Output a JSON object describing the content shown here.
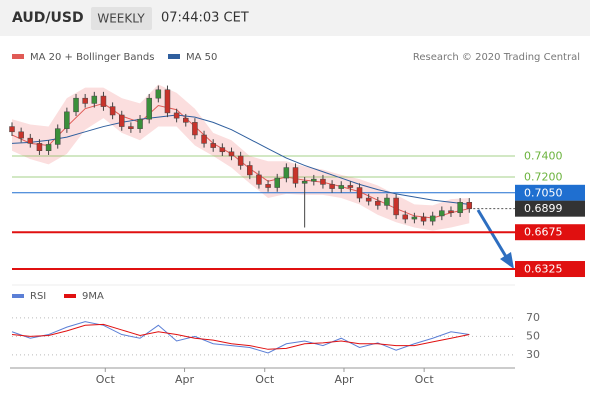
{
  "header": {
    "symbol": "AUD/USD",
    "period": "WEEKLY",
    "time": "07:44:03 CET"
  },
  "chart_data": [
    {
      "type": "candlestick",
      "note": "Research © 2020 Trading Central",
      "up_color": "#3a8f3a",
      "down_color": "#c8332b",
      "x": [
        0,
        3,
        6,
        9,
        12,
        15,
        18,
        21,
        24,
        27,
        30,
        33,
        36,
        39,
        42,
        45,
        48,
        51,
        54,
        57,
        60,
        63,
        66,
        69,
        72,
        75,
        78,
        81,
        84,
        87,
        90,
        93,
        96,
        99,
        102,
        105,
        108,
        111,
        114,
        117,
        120,
        123,
        126,
        129,
        132,
        135,
        138,
        141,
        144,
        147,
        150
      ],
      "open": [
        0.768,
        0.763,
        0.757,
        0.752,
        0.745,
        0.751,
        0.766,
        0.782,
        0.795,
        0.79,
        0.797,
        0.787,
        0.779,
        0.768,
        0.766,
        0.775,
        0.795,
        0.803,
        0.781,
        0.776,
        0.772,
        0.76,
        0.752,
        0.748,
        0.744,
        0.74,
        0.731,
        0.722,
        0.713,
        0.71,
        0.719,
        0.729,
        0.714,
        0.716,
        0.718,
        0.713,
        0.709,
        0.712,
        0.71,
        0.7,
        0.697,
        0.693,
        0.7,
        0.684,
        0.68,
        0.682,
        0.678,
        0.683,
        0.688,
        0.686,
        0.696
      ],
      "high": [
        0.772,
        0.767,
        0.761,
        0.756,
        0.755,
        0.77,
        0.786,
        0.799,
        0.799,
        0.801,
        0.801,
        0.791,
        0.783,
        0.772,
        0.779,
        0.799,
        0.807,
        0.807,
        0.785,
        0.78,
        0.776,
        0.764,
        0.756,
        0.752,
        0.748,
        0.744,
        0.735,
        0.726,
        0.717,
        0.723,
        0.733,
        0.733,
        0.72,
        0.722,
        0.722,
        0.717,
        0.716,
        0.716,
        0.714,
        0.704,
        0.701,
        0.704,
        0.704,
        0.688,
        0.686,
        0.686,
        0.687,
        0.692,
        0.692,
        0.7,
        0.7
      ],
      "low": [
        0.759,
        0.753,
        0.748,
        0.741,
        0.741,
        0.747,
        0.762,
        0.778,
        0.786,
        0.786,
        0.783,
        0.775,
        0.764,
        0.762,
        0.762,
        0.771,
        0.791,
        0.777,
        0.772,
        0.768,
        0.756,
        0.748,
        0.744,
        0.74,
        0.736,
        0.727,
        0.718,
        0.709,
        0.706,
        0.706,
        0.715,
        0.71,
        0.672,
        0.712,
        0.709,
        0.705,
        0.705,
        0.706,
        0.696,
        0.693,
        0.689,
        0.689,
        0.68,
        0.676,
        0.676,
        0.674,
        0.674,
        0.679,
        0.682,
        0.682,
        0.686
      ],
      "close": [
        0.763,
        0.757,
        0.752,
        0.745,
        0.751,
        0.766,
        0.782,
        0.795,
        0.79,
        0.797,
        0.787,
        0.779,
        0.768,
        0.766,
        0.775,
        0.795,
        0.803,
        0.781,
        0.776,
        0.772,
        0.76,
        0.752,
        0.748,
        0.744,
        0.74,
        0.731,
        0.722,
        0.713,
        0.71,
        0.719,
        0.729,
        0.714,
        0.716,
        0.718,
        0.713,
        0.709,
        0.712,
        0.71,
        0.7,
        0.697,
        0.693,
        0.7,
        0.684,
        0.68,
        0.682,
        0.678,
        0.683,
        0.688,
        0.686,
        0.696,
        0.6899
      ],
      "xlim": [
        0,
        165
      ],
      "ylim": [
        0.6173,
        0.8218
      ],
      "series": [
        {
          "name": "MA 20 + Bollinger Bands",
          "color": "#e05a55",
          "band_color": "#fbdede",
          "x": [
            0,
            6,
            12,
            18,
            24,
            30,
            36,
            42,
            48,
            54,
            60,
            66,
            72,
            78,
            84,
            90,
            96,
            102,
            108,
            114,
            120,
            126,
            132,
            138,
            144,
            150
          ],
          "values": [
            0.76,
            0.752,
            0.75,
            0.768,
            0.785,
            0.79,
            0.778,
            0.772,
            0.788,
            0.784,
            0.768,
            0.752,
            0.742,
            0.728,
            0.716,
            0.72,
            0.717,
            0.715,
            0.711,
            0.706,
            0.698,
            0.69,
            0.683,
            0.681,
            0.686,
            0.69
          ],
          "upper": [
            0.775,
            0.77,
            0.768,
            0.795,
            0.805,
            0.805,
            0.795,
            0.79,
            0.808,
            0.8,
            0.785,
            0.762,
            0.755,
            0.74,
            0.735,
            0.735,
            0.73,
            0.727,
            0.722,
            0.718,
            0.712,
            0.703,
            0.694,
            0.693,
            0.699,
            0.7
          ],
          "lower": [
            0.745,
            0.737,
            0.732,
            0.742,
            0.765,
            0.776,
            0.762,
            0.755,
            0.768,
            0.768,
            0.75,
            0.74,
            0.729,
            0.714,
            0.7,
            0.704,
            0.703,
            0.703,
            0.7,
            0.694,
            0.684,
            0.677,
            0.672,
            0.669,
            0.672,
            0.676
          ]
        },
        {
          "name": "MA 50",
          "color": "#2f5f9e",
          "x": [
            0,
            6,
            12,
            18,
            24,
            30,
            36,
            42,
            48,
            54,
            60,
            66,
            72,
            78,
            84,
            90,
            96,
            102,
            108,
            114,
            120,
            126,
            132,
            138,
            144,
            150
          ],
          "values": [
            0.752,
            0.753,
            0.755,
            0.758,
            0.763,
            0.768,
            0.772,
            0.775,
            0.777,
            0.779,
            0.777,
            0.772,
            0.765,
            0.756,
            0.747,
            0.738,
            0.731,
            0.725,
            0.719,
            0.713,
            0.708,
            0.704,
            0.701,
            0.698,
            0.696,
            0.694
          ]
        }
      ],
      "levels": [
        {
          "value": 0.74,
          "label": "0.7400",
          "color": "#6cb33e",
          "style": "text"
        },
        {
          "value": 0.72,
          "label": "0.7200",
          "color": "#6cb33e",
          "style": "text"
        },
        {
          "value": 0.705,
          "label": "0.7050",
          "color": "#1f6fd0",
          "style": "box"
        },
        {
          "value": 0.6899,
          "label": "0.6899",
          "color": "#333333",
          "style": "current"
        },
        {
          "value": 0.6675,
          "label": "0.6675",
          "color": "#e01010",
          "style": "box"
        },
        {
          "value": 0.6325,
          "label": "0.6325",
          "color": "#e01010",
          "style": "box"
        }
      ]
    },
    {
      "type": "line",
      "xlim": [
        0,
        165
      ],
      "ylim": [
        19,
        84
      ],
      "yticks": [
        30,
        50,
        70
      ],
      "grid": true,
      "xticks": [
        {
          "value": 30.6,
          "label": "Oct"
        },
        {
          "value": 56.6,
          "label": "Apr"
        },
        {
          "value": 82.9,
          "label": "Oct"
        },
        {
          "value": 108.9,
          "label": "Apr"
        },
        {
          "value": 135.2,
          "label": "Oct"
        }
      ],
      "series": [
        {
          "name": "RSI",
          "color": "#5b7fd6",
          "x": [
            0,
            6,
            12,
            18,
            24,
            30,
            36,
            42,
            48,
            54,
            60,
            66,
            72,
            78,
            84,
            90,
            96,
            102,
            108,
            114,
            120,
            126,
            132,
            138,
            144,
            150
          ],
          "values": [
            55,
            48,
            52,
            60,
            66,
            62,
            52,
            48,
            62,
            45,
            50,
            42,
            40,
            38,
            32,
            42,
            45,
            40,
            48,
            38,
            43,
            35,
            42,
            48,
            55,
            52
          ]
        },
        {
          "name": "9MA",
          "color": "#e01010",
          "x": [
            0,
            6,
            12,
            18,
            24,
            30,
            36,
            42,
            48,
            54,
            60,
            66,
            72,
            78,
            84,
            90,
            96,
            102,
            108,
            114,
            120,
            126,
            132,
            138,
            144,
            150
          ],
          "values": [
            52,
            50,
            51,
            56,
            62,
            63,
            57,
            51,
            55,
            52,
            48,
            46,
            42,
            40,
            36,
            37,
            42,
            43,
            45,
            42,
            42,
            40,
            40,
            44,
            48,
            52
          ]
        }
      ]
    }
  ]
}
